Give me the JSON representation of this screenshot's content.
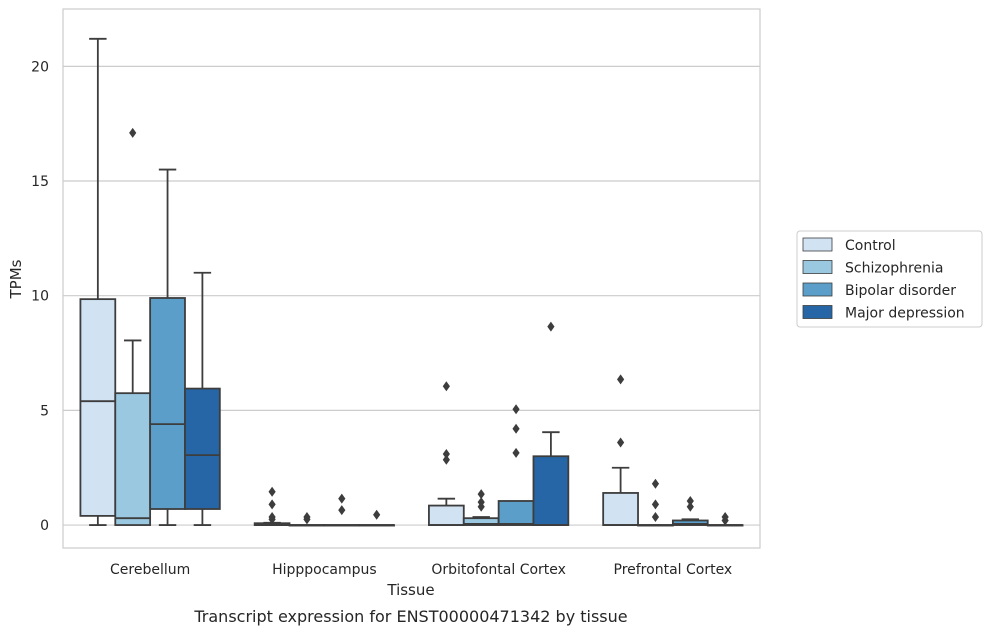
{
  "chart_data": {
    "type": "box",
    "caption": "Transcript expression for ENST00000471342 by tissue",
    "xlabel": "Tissue",
    "ylabel": "TPMs",
    "ylim": [
      -1.0,
      22.5
    ],
    "yticks": [
      0,
      5,
      10,
      15,
      20
    ],
    "grid": true,
    "legend_position": "right",
    "categories": [
      "Cerebellum",
      "Hipppocampus",
      "Orbitofontal Cortex",
      "Prefrontal Cortex"
    ],
    "series": [
      {
        "name": "Control",
        "color": "#d1e2f2",
        "boxes": [
          {
            "whisker_low": 0,
            "q1": 0.4,
            "median": 5.4,
            "q3": 9.85,
            "whisker_high": 21.2,
            "outliers": []
          },
          {
            "whisker_low": 0,
            "q1": 0,
            "median": 0,
            "q3": 0.08,
            "whisker_high": 0.1,
            "outliers": [
              0.25,
              0.35,
              0.9,
              1.45
            ]
          },
          {
            "whisker_low": 0,
            "q1": 0,
            "median": 0,
            "q3": 0.85,
            "whisker_high": 1.15,
            "outliers": [
              2.85,
              3.1,
              6.05
            ]
          },
          {
            "whisker_low": 0,
            "q1": 0,
            "median": 0,
            "q3": 1.4,
            "whisker_high": 2.5,
            "outliers": [
              3.6,
              6.35
            ]
          }
        ]
      },
      {
        "name": "Schizophrenia",
        "color": "#9ac8e0",
        "boxes": [
          {
            "whisker_low": 0,
            "q1": 0,
            "median": 0.3,
            "q3": 5.75,
            "whisker_high": 8.05,
            "outliers": [
              17.1
            ]
          },
          {
            "whisker_low": 0,
            "q1": 0,
            "median": 0,
            "q3": 0,
            "whisker_high": 0,
            "outliers": [
              0.25,
              0.35
            ]
          },
          {
            "whisker_low": 0,
            "q1": 0,
            "median": 0.05,
            "q3": 0.3,
            "whisker_high": 0.35,
            "outliers": [
              0.8,
              1.0,
              1.35
            ]
          },
          {
            "whisker_low": 0,
            "q1": 0,
            "median": 0,
            "q3": 0,
            "whisker_high": 0,
            "outliers": [
              0.35,
              0.9,
              1.8
            ]
          }
        ]
      },
      {
        "name": "Bipolar disorder",
        "color": "#5a9ec9",
        "boxes": [
          {
            "whisker_low": 0,
            "q1": 0.7,
            "median": 4.4,
            "q3": 9.9,
            "whisker_high": 15.5,
            "outliers": []
          },
          {
            "whisker_low": 0,
            "q1": 0,
            "median": 0,
            "q3": 0,
            "whisker_high": 0,
            "outliers": [
              0.65,
              1.15
            ]
          },
          {
            "whisker_low": 0,
            "q1": 0,
            "median": 0.05,
            "q3": 1.05,
            "whisker_high": 1.05,
            "outliers": [
              3.15,
              4.2,
              5.05
            ]
          },
          {
            "whisker_low": 0,
            "q1": 0,
            "median": 0.05,
            "q3": 0.2,
            "whisker_high": 0.25,
            "outliers": [
              0.8,
              1.05
            ]
          }
        ]
      },
      {
        "name": "Major depression",
        "color": "#2666a6",
        "boxes": [
          {
            "whisker_low": 0,
            "q1": 0.7,
            "median": 3.05,
            "q3": 5.95,
            "whisker_high": 11.0,
            "outliers": []
          },
          {
            "whisker_low": 0,
            "q1": 0,
            "median": 0,
            "q3": 0,
            "whisker_high": 0,
            "outliers": [
              0.45
            ]
          },
          {
            "whisker_low": 0,
            "q1": 0,
            "median": 0,
            "q3": 3.0,
            "whisker_high": 4.05,
            "outliers": [
              8.65
            ]
          },
          {
            "whisker_low": 0,
            "q1": 0,
            "median": 0,
            "q3": 0,
            "whisker_high": 0,
            "outliers": [
              0.2,
              0.35
            ]
          }
        ]
      }
    ]
  }
}
